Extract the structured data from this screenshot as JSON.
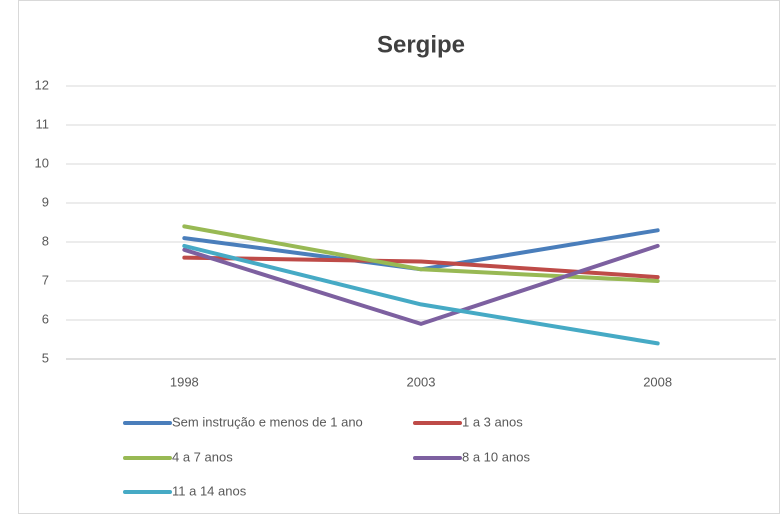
{
  "chart_data": {
    "type": "line",
    "title": "Sergipe",
    "categories": [
      "1998",
      "2003",
      "2008"
    ],
    "series": [
      {
        "name": "Sem instrução e menos de 1 ano",
        "color": "#4a7ebb",
        "values": [
          8.1,
          7.3,
          8.3
        ]
      },
      {
        "name": "1 a 3 anos",
        "color": "#be4b48",
        "values": [
          7.6,
          7.5,
          7.1
        ]
      },
      {
        "name": "4 a 7 anos",
        "color": "#98b954",
        "values": [
          8.4,
          7.3,
          7.0
        ]
      },
      {
        "name": "8 a 10 anos",
        "color": "#7d60a0",
        "values": [
          7.8,
          5.9,
          7.9
        ]
      },
      {
        "name": "11 a 14 anos",
        "color": "#46aac5",
        "values": [
          7.9,
          6.4,
          5.4
        ]
      }
    ],
    "ylim": [
      5,
      12
    ],
    "yticks": [
      5,
      6,
      7,
      8,
      9,
      10,
      11,
      12
    ],
    "grid": true,
    "legend": "bottom"
  }
}
